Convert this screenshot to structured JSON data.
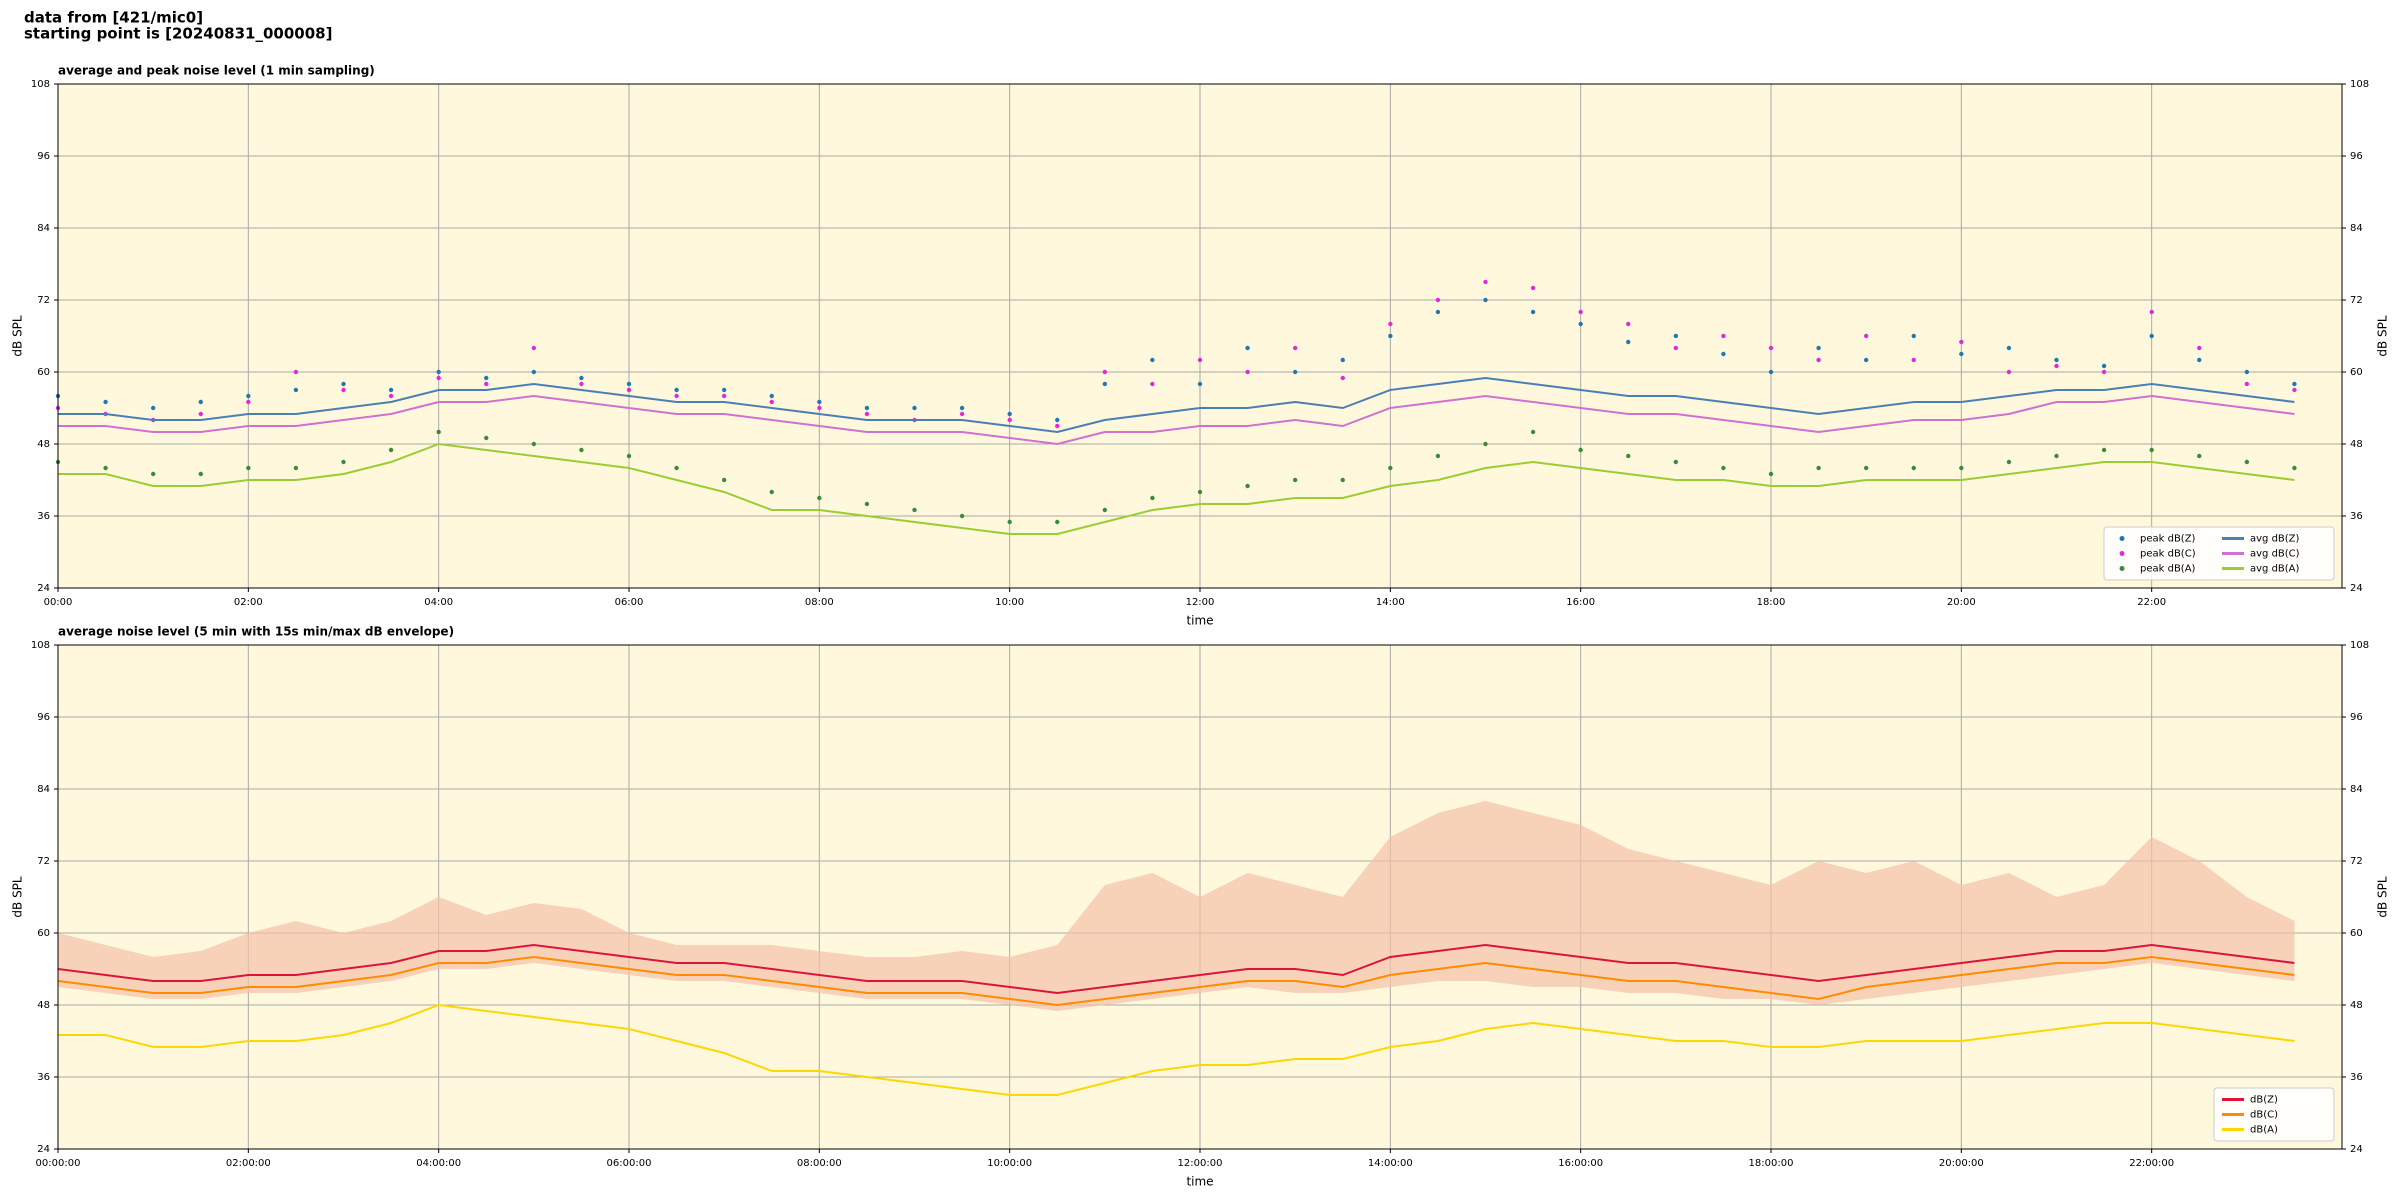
{
  "header": {
    "line1": "data from [421/mic0]",
    "line2": "starting point is [20240831_000008]"
  },
  "chart_data": [
    {
      "type": "line",
      "title": "average and peak noise level (1 min sampling)",
      "xlabel": "time",
      "ylabel": "dB SPL",
      "xlim": [
        0,
        24
      ],
      "ylim": [
        24,
        108
      ],
      "yticks": [
        24,
        36,
        48,
        60,
        72,
        84,
        96,
        108
      ],
      "xticks": [
        {
          "value": 0,
          "label": "00:00"
        },
        {
          "value": 2,
          "label": "02:00"
        },
        {
          "value": 4,
          "label": "04:00"
        },
        {
          "value": 6,
          "label": "06:00"
        },
        {
          "value": 8,
          "label": "08:00"
        },
        {
          "value": 10,
          "label": "10:00"
        },
        {
          "value": 12,
          "label": "12:00"
        },
        {
          "value": 14,
          "label": "14:00"
        },
        {
          "value": 16,
          "label": "16:00"
        },
        {
          "value": 18,
          "label": "18:00"
        },
        {
          "value": 20,
          "label": "20:00"
        },
        {
          "value": 22,
          "label": "22:00"
        }
      ],
      "grid": true,
      "legend": "lower right",
      "x": [
        0,
        0.5,
        1,
        1.5,
        2,
        2.5,
        3,
        3.5,
        4,
        4.5,
        5,
        5.5,
        6,
        6.5,
        7,
        7.5,
        8,
        8.5,
        9,
        9.5,
        10,
        10.5,
        11,
        11.5,
        12,
        12.5,
        13,
        13.5,
        14,
        14.5,
        15,
        15.5,
        16,
        16.5,
        17,
        17.5,
        18,
        18.5,
        19,
        19.5,
        20,
        20.5,
        21,
        21.5,
        22,
        22.5,
        23,
        23.5
      ],
      "series": [
        {
          "name": "peak dB(Z)",
          "mode": "markers",
          "color": "#1f77b4",
          "values": [
            56,
            55,
            54,
            55,
            56,
            57,
            58,
            57,
            60,
            59,
            60,
            59,
            58,
            57,
            57,
            56,
            55,
            54,
            54,
            54,
            53,
            52,
            58,
            62,
            58,
            64,
            60,
            62,
            66,
            70,
            72,
            70,
            68,
            65,
            66,
            63,
            60,
            64,
            62,
            66,
            63,
            64,
            62,
            61,
            66,
            62,
            60,
            58
          ]
        },
        {
          "name": "peak dB(C)",
          "mode": "markers",
          "color": "#e028e0",
          "values": [
            54,
            53,
            52,
            53,
            55,
            60,
            57,
            56,
            59,
            58,
            64,
            58,
            57,
            56,
            56,
            55,
            54,
            53,
            52,
            53,
            52,
            51,
            60,
            58,
            62,
            60,
            64,
            59,
            68,
            72,
            75,
            74,
            70,
            68,
            64,
            66,
            64,
            62,
            66,
            62,
            65,
            60,
            61,
            60,
            70,
            64,
            58,
            57
          ]
        },
        {
          "name": "peak dB(A)",
          "mode": "markers",
          "color": "#3a8a3a",
          "values": [
            45,
            44,
            43,
            43,
            44,
            44,
            45,
            47,
            50,
            49,
            48,
            47,
            46,
            44,
            42,
            40,
            39,
            38,
            37,
            36,
            35,
            35,
            37,
            39,
            40,
            41,
            42,
            42,
            44,
            46,
            48,
            50,
            47,
            46,
            45,
            44,
            43,
            44,
            44,
            44,
            44,
            45,
            46,
            47,
            47,
            46,
            45,
            44
          ]
        },
        {
          "name": "avg dB(Z)",
          "mode": "lines",
          "color": "#4a7fb5",
          "values": [
            53,
            53,
            52,
            52,
            53,
            53,
            54,
            55,
            57,
            57,
            58,
            57,
            56,
            55,
            55,
            54,
            53,
            52,
            52,
            52,
            51,
            50,
            52,
            53,
            54,
            54,
            55,
            54,
            57,
            58,
            59,
            58,
            57,
            56,
            56,
            55,
            54,
            53,
            54,
            55,
            55,
            56,
            57,
            57,
            58,
            57,
            56,
            55
          ]
        },
        {
          "name": "avg dB(C)",
          "mode": "lines",
          "color": "#d070d0",
          "values": [
            51,
            51,
            50,
            50,
            51,
            51,
            52,
            53,
            55,
            55,
            56,
            55,
            54,
            53,
            53,
            52,
            51,
            50,
            50,
            50,
            49,
            48,
            50,
            50,
            51,
            51,
            52,
            51,
            54,
            55,
            56,
            55,
            54,
            53,
            53,
            52,
            51,
            50,
            51,
            52,
            52,
            53,
            55,
            55,
            56,
            55,
            54,
            53
          ]
        },
        {
          "name": "avg dB(A)",
          "mode": "lines",
          "color": "#9acd32",
          "values": [
            43,
            43,
            41,
            41,
            42,
            42,
            43,
            45,
            48,
            47,
            46,
            45,
            44,
            42,
            40,
            37,
            37,
            36,
            35,
            34,
            33,
            33,
            35,
            37,
            38,
            38,
            39,
            39,
            41,
            42,
            44,
            45,
            44,
            43,
            42,
            42,
            41,
            41,
            42,
            42,
            42,
            43,
            44,
            45,
            45,
            44,
            43,
            42
          ]
        }
      ]
    },
    {
      "type": "line",
      "title": "average noise level (5 min with 15s min/max dB envelope)",
      "xlabel": "time",
      "ylabel": "dB SPL",
      "xlim": [
        0,
        24
      ],
      "ylim": [
        24,
        108
      ],
      "yticks": [
        24,
        36,
        48,
        60,
        72,
        84,
        96,
        108
      ],
      "xticks": [
        {
          "value": 0,
          "label": "00:00:00"
        },
        {
          "value": 2,
          "label": "02:00:00"
        },
        {
          "value": 4,
          "label": "04:00:00"
        },
        {
          "value": 6,
          "label": "06:00:00"
        },
        {
          "value": 8,
          "label": "08:00:00"
        },
        {
          "value": 10,
          "label": "10:00:00"
        },
        {
          "value": 12,
          "label": "12:00:00"
        },
        {
          "value": 14,
          "label": "14:00:00"
        },
        {
          "value": 16,
          "label": "16:00:00"
        },
        {
          "value": 18,
          "label": "18:00:00"
        },
        {
          "value": 20,
          "label": "20:00:00"
        },
        {
          "value": 22,
          "label": "22:00:00"
        }
      ],
      "grid": true,
      "legend": "lower right",
      "x": [
        0,
        0.5,
        1,
        1.5,
        2,
        2.5,
        3,
        3.5,
        4,
        4.5,
        5,
        5.5,
        6,
        6.5,
        7,
        7.5,
        8,
        8.5,
        9,
        9.5,
        10,
        10.5,
        11,
        11.5,
        12,
        12.5,
        13,
        13.5,
        14,
        14.5,
        15,
        15.5,
        16,
        16.5,
        17,
        17.5,
        18,
        18.5,
        19,
        19.5,
        20,
        20.5,
        21,
        21.5,
        22,
        22.5,
        23,
        23.5
      ],
      "envelope": {
        "color": "#f4c2a8",
        "lower": [
          51,
          50,
          49,
          49,
          50,
          50,
          51,
          52,
          54,
          54,
          55,
          54,
          53,
          52,
          52,
          51,
          50,
          49,
          49,
          49,
          48,
          47,
          48,
          49,
          50,
          51,
          50,
          50,
          51,
          52,
          52,
          51,
          51,
          50,
          50,
          49,
          49,
          48,
          49,
          50,
          51,
          52,
          53,
          54,
          55,
          54,
          53,
          52
        ],
        "upper": [
          60,
          58,
          56,
          57,
          60,
          62,
          60,
          62,
          66,
          63,
          65,
          64,
          60,
          58,
          58,
          58,
          57,
          56,
          56,
          57,
          56,
          58,
          68,
          70,
          66,
          70,
          68,
          66,
          76,
          80,
          82,
          80,
          78,
          74,
          72,
          70,
          68,
          72,
          70,
          72,
          68,
          70,
          66,
          68,
          76,
          72,
          66,
          62
        ]
      },
      "series": [
        {
          "name": "dB(Z)",
          "mode": "lines",
          "color": "#dc143c",
          "values": [
            54,
            53,
            52,
            52,
            53,
            53,
            54,
            55,
            57,
            57,
            58,
            57,
            56,
            55,
            55,
            54,
            53,
            52,
            52,
            52,
            51,
            50,
            51,
            52,
            53,
            54,
            54,
            53,
            56,
            57,
            58,
            57,
            56,
            55,
            55,
            54,
            53,
            52,
            53,
            54,
            55,
            56,
            57,
            57,
            58,
            57,
            56,
            55
          ]
        },
        {
          "name": "dB(C)",
          "mode": "lines",
          "color": "#ff8c00",
          "values": [
            52,
            51,
            50,
            50,
            51,
            51,
            52,
            53,
            55,
            55,
            56,
            55,
            54,
            53,
            53,
            52,
            51,
            50,
            50,
            50,
            49,
            48,
            49,
            50,
            51,
            52,
            52,
            51,
            53,
            54,
            55,
            54,
            53,
            52,
            52,
            51,
            50,
            49,
            51,
            52,
            53,
            54,
            55,
            55,
            56,
            55,
            54,
            53
          ]
        },
        {
          "name": "dB(A)",
          "mode": "lines",
          "color": "#ffd700",
          "values": [
            43,
            43,
            41,
            41,
            42,
            42,
            43,
            45,
            48,
            47,
            46,
            45,
            44,
            42,
            40,
            37,
            37,
            36,
            35,
            34,
            33,
            33,
            35,
            37,
            38,
            38,
            39,
            39,
            41,
            42,
            44,
            45,
            44,
            43,
            42,
            42,
            41,
            41,
            42,
            42,
            42,
            43,
            44,
            45,
            45,
            44,
            43,
            42
          ]
        }
      ]
    }
  ]
}
